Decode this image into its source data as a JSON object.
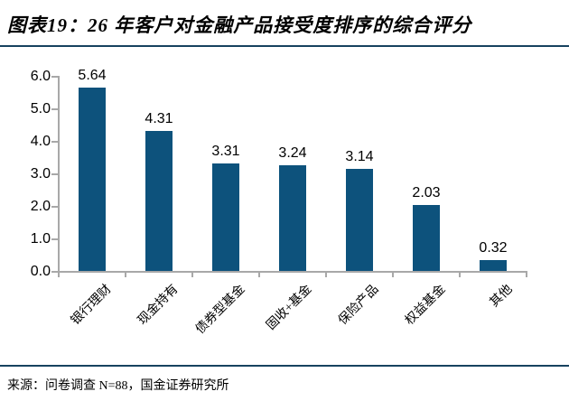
{
  "header": {
    "title": "图表19：26 年客户对金融产品接受度排序的综合评分"
  },
  "footer": {
    "source": "来源：问卷调查 N=88，国金证券研究所"
  },
  "chart_data": {
    "type": "bar",
    "title": "图表19：26 年客户对金融产品接受度排序的综合评分",
    "categories": [
      "银行理财",
      "现金持有",
      "债券型基金",
      "固收+基金",
      "保险产品",
      "权益基金",
      "其他"
    ],
    "values": [
      5.64,
      4.31,
      3.31,
      3.24,
      3.14,
      2.03,
      0.32
    ],
    "value_labels": [
      "5.64",
      "4.31",
      "3.31",
      "3.24",
      "3.14",
      "2.03",
      "0.32"
    ],
    "xlabel": "",
    "ylabel": "",
    "ylim": [
      0,
      6
    ],
    "ytick_labels": [
      "0.0",
      "1.0",
      "2.0",
      "3.0",
      "4.0",
      "5.0",
      "6.0"
    ],
    "grid": "off",
    "legend": "none",
    "bar_color": "#0d527c",
    "axis_color": "#a8a8a8",
    "accent_line_color": "#17425f",
    "text_color": "#000000",
    "source": "来源：问卷调查 N=88，国金证券研究所"
  }
}
